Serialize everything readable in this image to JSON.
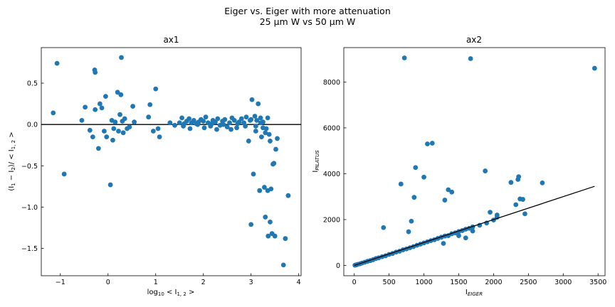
{
  "figure": {
    "suptitle_line1": "Eiger vs. Eiger with more attenuation",
    "suptitle_line2": "25 µm W vs 50 µm W"
  },
  "colors": {
    "marker": "#1f77b4",
    "line": "#000000"
  },
  "chart_data": [
    {
      "type": "scatter",
      "title": "ax1",
      "xlabel": "log10 <I1,2>",
      "ylabel": "(I1 − I2)/<I1,2>",
      "xlim": [
        -1.4,
        4.05
      ],
      "ylim": [
        -1.83,
        0.93
      ],
      "xticks": [
        -1,
        0,
        1,
        2,
        3,
        4
      ],
      "yticks": [
        -1.5,
        -1.0,
        -0.5,
        0.0,
        0.5
      ],
      "ytick_labels": [
        "−1.5",
        "−1.0",
        "−0.5",
        "0.0",
        "0.5"
      ],
      "hline_y": 0.0,
      "points": [
        [
          -1.15,
          0.14
        ],
        [
          -1.07,
          0.74
        ],
        [
          -0.92,
          -0.6
        ],
        [
          -0.55,
          0.05
        ],
        [
          -0.48,
          0.21
        ],
        [
          -0.38,
          -0.07
        ],
        [
          -0.32,
          -0.15
        ],
        [
          -0.28,
          0.66
        ],
        [
          -0.27,
          0.63
        ],
        [
          -0.27,
          0.18
        ],
        [
          -0.2,
          -0.29
        ],
        [
          -0.17,
          0.25
        ],
        [
          -0.13,
          0.2
        ],
        [
          -0.08,
          -0.08
        ],
        [
          -0.05,
          0.34
        ],
        [
          -0.03,
          -0.15
        ],
        [
          0.05,
          -0.73
        ],
        [
          0.08,
          0.05
        ],
        [
          0.1,
          -0.19
        ],
        [
          0.12,
          -0.05
        ],
        [
          0.15,
          0.03
        ],
        [
          0.2,
          0.39
        ],
        [
          0.22,
          -0.08
        ],
        [
          0.25,
          0.12
        ],
        [
          0.27,
          0.36
        ],
        [
          0.28,
          0.81
        ],
        [
          0.3,
          0.04
        ],
        [
          0.32,
          -0.1
        ],
        [
          0.35,
          0.07
        ],
        [
          0.4,
          -0.05
        ],
        [
          0.45,
          -0.03
        ],
        [
          0.52,
          0.22
        ],
        [
          0.55,
          0.03
        ],
        [
          0.85,
          0.09
        ],
        [
          0.88,
          0.24
        ],
        [
          0.95,
          -0.08
        ],
        [
          1.0,
          0.43
        ],
        [
          1.05,
          -0.05
        ],
        [
          1.08,
          -0.15
        ],
        [
          1.3,
          0.02
        ],
        [
          1.4,
          -0.01
        ],
        [
          1.5,
          0.02
        ],
        [
          1.55,
          0.08
        ],
        [
          1.6,
          0.01
        ],
        [
          1.65,
          0.04
        ],
        [
          1.7,
          0.07
        ],
        [
          1.75,
          0.02
        ],
        [
          1.8,
          0.05
        ],
        [
          1.85,
          0.01
        ],
        [
          1.9,
          0.03
        ],
        [
          1.95,
          0.06
        ],
        [
          2.0,
          0.04
        ],
        [
          2.05,
          0.09
        ],
        [
          2.1,
          0.02
        ],
        [
          2.15,
          -0.02
        ],
        [
          2.2,
          0.05
        ],
        [
          2.25,
          0.03
        ],
        [
          2.3,
          0.07
        ],
        [
          2.35,
          -0.01
        ],
        [
          2.4,
          0.04
        ],
        [
          2.45,
          0.06
        ],
        [
          2.5,
          -0.03
        ],
        [
          2.55,
          0.02
        ],
        [
          2.6,
          0.08
        ],
        [
          2.65,
          0.05
        ],
        [
          2.7,
          -0.04
        ],
        [
          2.75,
          0.03
        ],
        [
          2.8,
          0.07
        ],
        [
          2.85,
          0.02
        ],
        [
          2.9,
          0.09
        ],
        [
          2.95,
          -0.2
        ],
        [
          2.98,
          0.05
        ],
        [
          3.02,
          0.3
        ],
        [
          3.05,
          -0.6
        ],
        [
          3.08,
          0.1
        ],
        [
          3.1,
          -0.08
        ],
        [
          3.12,
          0.05
        ],
        [
          3.15,
          0.25
        ],
        [
          3.18,
          -0.8
        ],
        [
          3.2,
          0.08
        ],
        [
          3.22,
          -0.15
        ],
        [
          3.25,
          0.03
        ],
        [
          3.28,
          -0.76
        ],
        [
          3.3,
          -1.12
        ],
        [
          3.32,
          -0.05
        ],
        [
          3.35,
          -0.8
        ],
        [
          3.36,
          -1.35
        ],
        [
          3.38,
          -0.12
        ],
        [
          3.4,
          -1.18
        ],
        [
          3.42,
          -0.78
        ],
        [
          3.44,
          -1.32
        ],
        [
          3.46,
          -0.48
        ],
        [
          3.48,
          -0.47
        ],
        [
          3.5,
          -1.35
        ],
        [
          3.52,
          -0.3
        ],
        [
          3.55,
          -0.17
        ],
        [
          3.68,
          -1.7
        ],
        [
          3.72,
          -1.38
        ],
        [
          3.78,
          -0.86
        ],
        [
          3.0,
          -1.21
        ],
        [
          3.3,
          -0.1
        ],
        [
          3.35,
          0.08
        ],
        [
          3.4,
          -0.2
        ],
        [
          1.58,
          -0.02
        ],
        [
          1.72,
          -0.05
        ],
        [
          1.88,
          0.0
        ],
        [
          2.02,
          -0.04
        ],
        [
          2.18,
          0.01
        ],
        [
          2.28,
          -0.06
        ],
        [
          2.42,
          0.0
        ],
        [
          2.58,
          -0.06
        ],
        [
          2.72,
          0.01
        ],
        [
          2.88,
          -0.02
        ],
        [
          3.0,
          0.06
        ],
        [
          3.1,
          -0.02
        ],
        [
          3.2,
          0.02
        ],
        [
          3.25,
          -0.04
        ]
      ]
    },
    {
      "type": "scatter",
      "title": "ax2",
      "xlabel": "IEIGER",
      "ylabel": "IPILATUS",
      "xlim": [
        -150,
        3600
      ],
      "ylim": [
        -450,
        9500
      ],
      "xticks": [
        0,
        500,
        1000,
        1500,
        2000,
        2500,
        3000,
        3500
      ],
      "yticks": [
        0,
        2000,
        4000,
        6000,
        8000
      ],
      "fit_line": [
        [
          0,
          0
        ],
        [
          3450,
          3450
        ]
      ],
      "points": [
        [
          10,
          10
        ],
        [
          30,
          25
        ],
        [
          50,
          45
        ],
        [
          80,
          70
        ],
        [
          110,
          100
        ],
        [
          150,
          140
        ],
        [
          190,
          180
        ],
        [
          230,
          210
        ],
        [
          270,
          250
        ],
        [
          310,
          300
        ],
        [
          350,
          330
        ],
        [
          400,
          380
        ],
        [
          450,
          420
        ],
        [
          500,
          480
        ],
        [
          550,
          520
        ],
        [
          600,
          580
        ],
        [
          650,
          620
        ],
        [
          700,
          680
        ],
        [
          750,
          720
        ],
        [
          800,
          770
        ],
        [
          850,
          820
        ],
        [
          900,
          880
        ],
        [
          950,
          930
        ],
        [
          1000,
          980
        ],
        [
          1050,
          1030
        ],
        [
          1100,
          1080
        ],
        [
          1150,
          1120
        ],
        [
          1200,
          1180
        ],
        [
          1250,
          1230
        ],
        [
          1300,
          1280
        ],
        [
          1350,
          1300
        ],
        [
          1400,
          1380
        ],
        [
          1450,
          1420
        ],
        [
          1500,
          1480
        ],
        [
          1550,
          1520
        ],
        [
          1600,
          1580
        ],
        [
          1650,
          1620
        ],
        [
          1700,
          1680
        ],
        [
          1800,
          1750
        ],
        [
          1900,
          1850
        ],
        [
          2000,
          1980
        ],
        [
          2050,
          2200
        ],
        [
          2250,
          3620
        ],
        [
          2320,
          2650
        ],
        [
          2350,
          3750
        ],
        [
          2360,
          3870
        ],
        [
          2380,
          2900
        ],
        [
          2420,
          2880
        ],
        [
          2450,
          2250
        ],
        [
          2700,
          3600
        ],
        [
          3450,
          8600
        ],
        [
          720,
          9050
        ],
        [
          1670,
          9020
        ],
        [
          420,
          1650
        ],
        [
          670,
          3550
        ],
        [
          780,
          1470
        ],
        [
          820,
          1930
        ],
        [
          860,
          2970
        ],
        [
          880,
          4270
        ],
        [
          1000,
          3850
        ],
        [
          1050,
          5300
        ],
        [
          1120,
          5330
        ],
        [
          1300,
          2850
        ],
        [
          1350,
          3300
        ],
        [
          1400,
          3200
        ],
        [
          1880,
          4120
        ],
        [
          1600,
          1200
        ],
        [
          1280,
          960
        ],
        [
          1500,
          1300
        ],
        [
          1700,
          1500
        ],
        [
          1950,
          2320
        ],
        [
          2050,
          2100
        ]
      ]
    }
  ]
}
